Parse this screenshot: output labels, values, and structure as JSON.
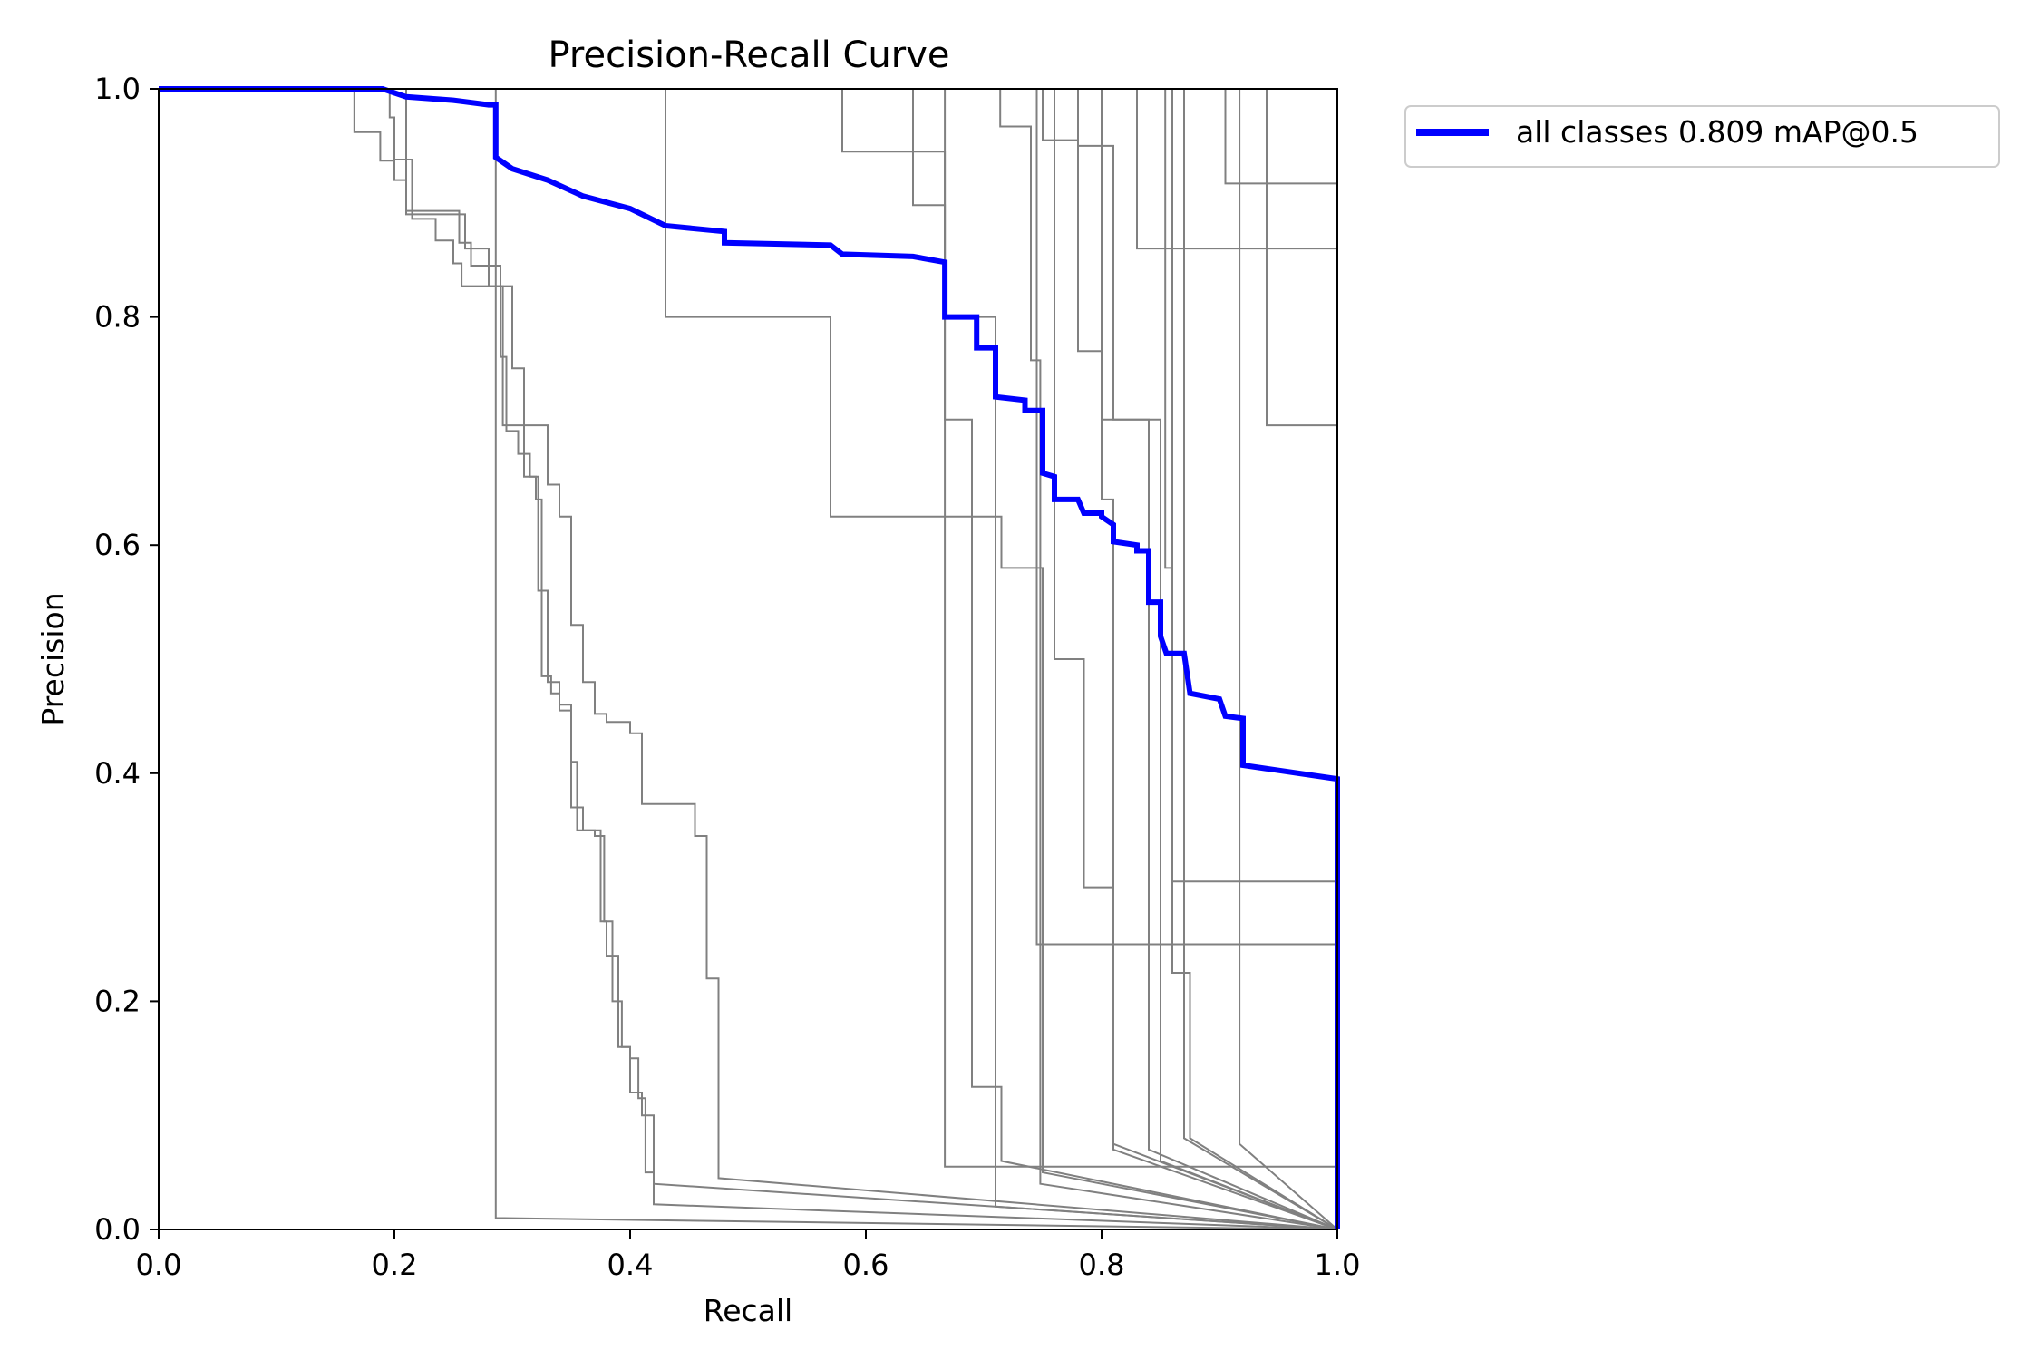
{
  "chart_data": {
    "type": "line",
    "title": "Precision-Recall Curve",
    "xlabel": "Recall",
    "ylabel": "Precision",
    "xlim": [
      0,
      1
    ],
    "ylim": [
      0,
      1
    ],
    "grid": false,
    "legend_position": "outside-top-right",
    "x_ticks": [
      "0.0",
      "0.2",
      "0.4",
      "0.6",
      "0.8",
      "1.0"
    ],
    "y_ticks": [
      "0.0",
      "0.2",
      "0.4",
      "0.6",
      "0.8",
      "1.0"
    ],
    "series": [
      {
        "name": "all classes 0.809 mAP@0.5",
        "color": "#0000ff",
        "points": [
          [
            0,
            1
          ],
          [
            0.19,
            1
          ],
          [
            0.21,
            0.993
          ],
          [
            0.25,
            0.99
          ],
          [
            0.28,
            0.986
          ],
          [
            0.286,
            0.986
          ],
          [
            0.286,
            0.94
          ],
          [
            0.3,
            0.93
          ],
          [
            0.33,
            0.92
          ],
          [
            0.36,
            0.906
          ],
          [
            0.4,
            0.895
          ],
          [
            0.43,
            0.88
          ],
          [
            0.48,
            0.875
          ],
          [
            0.48,
            0.865
          ],
          [
            0.57,
            0.863
          ],
          [
            0.58,
            0.855
          ],
          [
            0.64,
            0.853
          ],
          [
            0.667,
            0.848
          ],
          [
            0.667,
            0.8
          ],
          [
            0.694,
            0.8
          ],
          [
            0.694,
            0.773
          ],
          [
            0.71,
            0.773
          ],
          [
            0.71,
            0.73
          ],
          [
            0.735,
            0.727
          ],
          [
            0.735,
            0.718
          ],
          [
            0.75,
            0.718
          ],
          [
            0.75,
            0.663
          ],
          [
            0.76,
            0.66
          ],
          [
            0.76,
            0.64
          ],
          [
            0.78,
            0.64
          ],
          [
            0.785,
            0.628
          ],
          [
            0.8,
            0.628
          ],
          [
            0.8,
            0.625
          ],
          [
            0.81,
            0.618
          ],
          [
            0.81,
            0.603
          ],
          [
            0.83,
            0.6
          ],
          [
            0.83,
            0.595
          ],
          [
            0.84,
            0.595
          ],
          [
            0.84,
            0.55
          ],
          [
            0.85,
            0.55
          ],
          [
            0.85,
            0.52
          ],
          [
            0.855,
            0.505
          ],
          [
            0.87,
            0.505
          ],
          [
            0.875,
            0.47
          ],
          [
            0.9,
            0.465
          ],
          [
            0.905,
            0.45
          ],
          [
            0.92,
            0.448
          ],
          [
            0.92,
            0.407
          ],
          [
            1,
            0.395
          ],
          [
            1,
            0
          ]
        ]
      }
    ],
    "class_curves_color": "#808080",
    "class_curves": [
      [
        [
          0,
          1
        ],
        [
          0.166,
          1
        ],
        [
          0.166,
          0.962
        ],
        [
          0.188,
          0.962
        ],
        [
          0.188,
          0.937
        ],
        [
          0.2,
          0.937
        ],
        [
          0.2,
          0.938
        ],
        [
          0.215,
          0.938
        ],
        [
          0.215,
          0.886
        ],
        [
          0.235,
          0.886
        ],
        [
          0.235,
          0.867
        ],
        [
          0.25,
          0.867
        ],
        [
          0.25,
          0.847
        ],
        [
          0.257,
          0.847
        ],
        [
          0.257,
          0.827
        ],
        [
          0.3,
          0.827
        ],
        [
          0.3,
          0.755
        ],
        [
          0.31,
          0.755
        ],
        [
          0.31,
          0.66
        ],
        [
          0.32,
          0.66
        ],
        [
          0.32,
          0.64
        ],
        [
          0.325,
          0.64
        ],
        [
          0.325,
          0.485
        ],
        [
          0.333,
          0.485
        ],
        [
          0.333,
          0.47
        ],
        [
          0.34,
          0.47
        ],
        [
          0.34,
          0.455
        ],
        [
          0.35,
          0.455
        ],
        [
          0.35,
          0.41
        ],
        [
          0.355,
          0.41
        ],
        [
          0.355,
          0.35
        ],
        [
          0.37,
          0.35
        ],
        [
          0.37,
          0.345
        ],
        [
          0.378,
          0.345
        ],
        [
          0.378,
          0.27
        ],
        [
          0.385,
          0.27
        ],
        [
          0.385,
          0.2
        ],
        [
          0.393,
          0.2
        ],
        [
          0.393,
          0.16
        ],
        [
          0.4,
          0.16
        ],
        [
          0.4,
          0.15
        ],
        [
          0.407,
          0.15
        ],
        [
          0.407,
          0.115
        ],
        [
          0.413,
          0.115
        ],
        [
          0.413,
          0.05
        ],
        [
          0.42,
          0.05
        ],
        [
          0.42,
          0.022
        ],
        [
          1,
          0
        ]
      ],
      [
        [
          0,
          1
        ],
        [
          0.196,
          1
        ],
        [
          0.196,
          0.975
        ],
        [
          0.2,
          0.975
        ],
        [
          0.2,
          0.92
        ],
        [
          0.21,
          0.92
        ],
        [
          0.21,
          0.893
        ],
        [
          0.255,
          0.893
        ],
        [
          0.255,
          0.865
        ],
        [
          0.265,
          0.865
        ],
        [
          0.265,
          0.845
        ],
        [
          0.29,
          0.845
        ],
        [
          0.29,
          0.765
        ],
        [
          0.295,
          0.765
        ],
        [
          0.295,
          0.7
        ],
        [
          0.305,
          0.7
        ],
        [
          0.305,
          0.68
        ],
        [
          0.315,
          0.68
        ],
        [
          0.315,
          0.66
        ],
        [
          0.322,
          0.66
        ],
        [
          0.322,
          0.56
        ],
        [
          0.33,
          0.56
        ],
        [
          0.33,
          0.48
        ],
        [
          0.34,
          0.48
        ],
        [
          0.34,
          0.46
        ],
        [
          0.35,
          0.46
        ],
        [
          0.35,
          0.37
        ],
        [
          0.36,
          0.37
        ],
        [
          0.36,
          0.35
        ],
        [
          0.375,
          0.35
        ],
        [
          0.375,
          0.27
        ],
        [
          0.38,
          0.27
        ],
        [
          0.38,
          0.24
        ],
        [
          0.39,
          0.24
        ],
        [
          0.39,
          0.16
        ],
        [
          0.4,
          0.16
        ],
        [
          0.4,
          0.12
        ],
        [
          0.41,
          0.12
        ],
        [
          0.41,
          0.1
        ],
        [
          0.42,
          0.1
        ],
        [
          0.42,
          0.04
        ],
        [
          1,
          0
        ]
      ],
      [
        [
          0,
          1
        ],
        [
          0.21,
          1
        ],
        [
          0.21,
          0.89
        ],
        [
          0.26,
          0.89
        ],
        [
          0.26,
          0.86
        ],
        [
          0.28,
          0.86
        ],
        [
          0.28,
          0.827
        ],
        [
          0.292,
          0.827
        ],
        [
          0.292,
          0.705
        ],
        [
          0.33,
          0.705
        ],
        [
          0.33,
          0.653
        ],
        [
          0.34,
          0.653
        ],
        [
          0.34,
          0.625
        ],
        [
          0.35,
          0.625
        ],
        [
          0.35,
          0.53
        ],
        [
          0.36,
          0.53
        ],
        [
          0.36,
          0.48
        ],
        [
          0.37,
          0.48
        ],
        [
          0.37,
          0.452
        ],
        [
          0.38,
          0.452
        ],
        [
          0.38,
          0.445
        ],
        [
          0.4,
          0.445
        ],
        [
          0.4,
          0.435
        ],
        [
          0.41,
          0.435
        ],
        [
          0.41,
          0.373
        ],
        [
          0.455,
          0.373
        ],
        [
          0.455,
          0.345
        ],
        [
          0.465,
          0.345
        ],
        [
          0.465,
          0.22
        ],
        [
          0.475,
          0.22
        ],
        [
          0.475,
          0.045
        ],
        [
          1,
          0
        ]
      ],
      [
        [
          0,
          1
        ],
        [
          0.286,
          1
        ],
        [
          0.286,
          0.01
        ],
        [
          1,
          0
        ]
      ],
      [
        [
          0,
          1
        ],
        [
          0.43,
          1
        ],
        [
          0.43,
          0.8
        ],
        [
          0.57,
          0.8
        ],
        [
          0.57,
          0.625
        ],
        [
          0.715,
          0.625
        ],
        [
          0.715,
          0.58
        ],
        [
          0.75,
          0.58
        ],
        [
          0.75,
          0.05
        ],
        [
          1,
          0
        ]
      ],
      [
        [
          0,
          1
        ],
        [
          0.58,
          1
        ],
        [
          0.58,
          0.945
        ],
        [
          0.667,
          0.945
        ],
        [
          0.667,
          0.055
        ],
        [
          1,
          0.055
        ],
        [
          1,
          0
        ]
      ],
      [
        [
          0,
          1
        ],
        [
          0.64,
          1
        ],
        [
          0.64,
          0.898
        ],
        [
          0.667,
          0.898
        ],
        [
          0.667,
          0.71
        ],
        [
          0.69,
          0.71
        ],
        [
          0.69,
          0.125
        ],
        [
          0.715,
          0.125
        ],
        [
          0.715,
          0.06
        ],
        [
          1,
          0
        ]
      ],
      [
        [
          0,
          1
        ],
        [
          0.714,
          1
        ],
        [
          0.714,
          0.967
        ],
        [
          0.74,
          0.967
        ],
        [
          0.74,
          0.762
        ],
        [
          0.748,
          0.762
        ],
        [
          0.748,
          0.04
        ],
        [
          1,
          0
        ]
      ],
      [
        [
          0,
          1
        ],
        [
          0.667,
          1
        ],
        [
          0.667,
          0.8
        ],
        [
          0.71,
          0.8
        ],
        [
          0.71,
          0.76
        ],
        [
          0.71,
          0.76
        ],
        [
          0.71,
          0.02
        ],
        [
          1,
          0
        ]
      ],
      [
        [
          0,
          1
        ],
        [
          0.75,
          1
        ],
        [
          0.75,
          0.955
        ],
        [
          0.78,
          0.955
        ],
        [
          0.78,
          0.77
        ],
        [
          0.8,
          0.77
        ],
        [
          0.8,
          0.64
        ],
        [
          0.81,
          0.64
        ],
        [
          0.81,
          0.075
        ],
        [
          1,
          0
        ]
      ],
      [
        [
          0,
          1
        ],
        [
          0.745,
          1
        ],
        [
          0.745,
          0.25
        ],
        [
          1,
          0.25
        ],
        [
          1,
          0
        ]
      ],
      [
        [
          0,
          1
        ],
        [
          0.76,
          1
        ],
        [
          0.76,
          0.5
        ],
        [
          0.785,
          0.5
        ],
        [
          0.785,
          0.3
        ],
        [
          0.81,
          0.3
        ],
        [
          0.81,
          0.07
        ],
        [
          1,
          0
        ]
      ],
      [
        [
          0,
          1
        ],
        [
          0.8,
          1
        ],
        [
          0.8,
          0.71
        ],
        [
          0.84,
          0.71
        ],
        [
          0.84,
          0.07
        ],
        [
          1,
          0
        ]
      ],
      [
        [
          0,
          1
        ],
        [
          0.78,
          1
        ],
        [
          0.78,
          0.95
        ],
        [
          0.81,
          0.95
        ],
        [
          0.81,
          0.71
        ],
        [
          0.85,
          0.71
        ],
        [
          0.85,
          0.06
        ],
        [
          1,
          0
        ]
      ],
      [
        [
          0,
          1
        ],
        [
          0.83,
          1
        ],
        [
          0.83,
          0.86
        ],
        [
          1,
          0.86
        ],
        [
          1,
          0
        ]
      ],
      [
        [
          0,
          1
        ],
        [
          0.854,
          1
        ],
        [
          0.854,
          0.58
        ],
        [
          0.86,
          0.58
        ],
        [
          0.86,
          0.305
        ],
        [
          1,
          0.305
        ],
        [
          1,
          0
        ]
      ],
      [
        [
          0,
          1
        ],
        [
          0.86,
          1
        ],
        [
          0.86,
          0.225
        ],
        [
          0.875,
          0.225
        ],
        [
          0.875,
          0.08
        ],
        [
          1,
          0
        ]
      ],
      [
        [
          0,
          1
        ],
        [
          0.87,
          1
        ],
        [
          0.87,
          0.08
        ],
        [
          1,
          0
        ]
      ],
      [
        [
          0,
          1
        ],
        [
          0.905,
          1
        ],
        [
          0.905,
          0.917
        ],
        [
          1,
          0.917
        ],
        [
          1,
          0
        ]
      ],
      [
        [
          0,
          1
        ],
        [
          0.917,
          1
        ],
        [
          0.917,
          0.075
        ],
        [
          1,
          0
        ]
      ],
      [
        [
          0,
          1
        ],
        [
          0.94,
          1
        ],
        [
          0.94,
          0.705
        ],
        [
          1,
          0.705
        ],
        [
          1,
          0
        ]
      ]
    ]
  }
}
